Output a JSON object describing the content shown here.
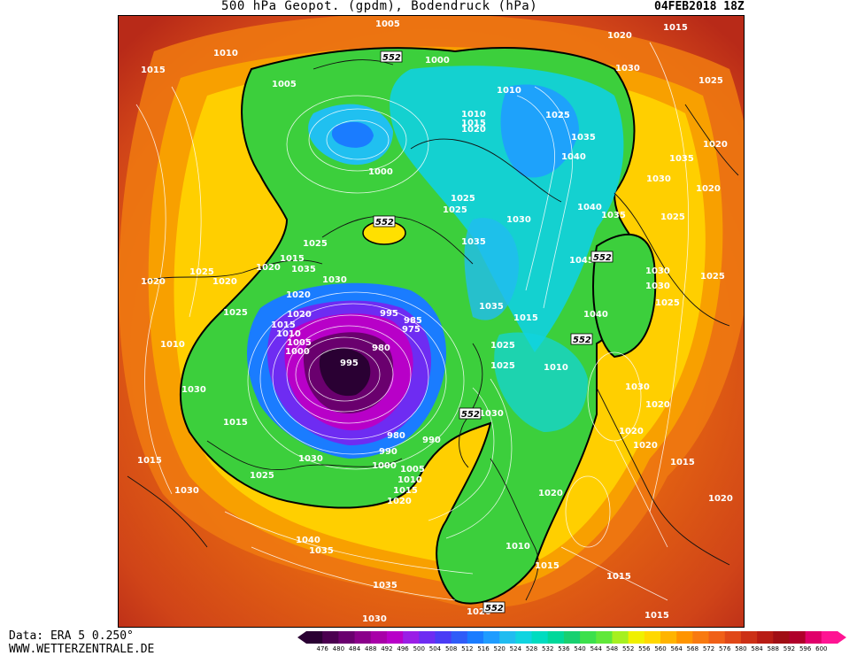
{
  "header": {
    "title": "500 hPa Geopot. (gpdm), Bodendruck (hPa)",
    "date": "04FEB2018 18Z"
  },
  "footer": {
    "data_source": "Data: ERA 5 0.250°",
    "website": "WWW.WETTERZENTRALE.DE"
  },
  "colorbar": {
    "values": [
      476,
      480,
      484,
      488,
      492,
      496,
      500,
      504,
      508,
      512,
      516,
      520,
      524,
      528,
      532,
      536,
      540,
      544,
      548,
      552,
      556,
      560,
      564,
      568,
      572,
      576,
      580,
      584,
      588,
      592,
      596,
      600
    ],
    "colors": [
      "#2a0033",
      "#4b0050",
      "#6a006e",
      "#8a008a",
      "#a800a8",
      "#b800c8",
      "#9a1ee6",
      "#6e2cf2",
      "#4a3cf5",
      "#2f5cf8",
      "#1a7cff",
      "#1f9cff",
      "#20bcf0",
      "#10d4e0",
      "#00dcc0",
      "#00d89a",
      "#18d070",
      "#3ce04c",
      "#60e83a",
      "#a6f020",
      "#f0f000",
      "#ffd800",
      "#ffb400",
      "#ff9400",
      "#f87a10",
      "#f06018",
      "#e04818",
      "#cc3016",
      "#b81c14",
      "#a00e14",
      "#b0002a",
      "#e0006a",
      "#ff1493"
    ],
    "arrow_left_color": "#2a0033",
    "arrow_right_color": "#ff1493"
  },
  "map": {
    "pressure_labels": [
      "1005",
      "1020",
      "1015",
      "1010",
      "1015",
      "1005",
      "552",
      "1000",
      "1030",
      "1025",
      "1010",
      "1010",
      "1015",
      "1020",
      "1025",
      "1035",
      "1020",
      "1040",
      "1000",
      "1035",
      "1030",
      "1020",
      "1040",
      "1025",
      "552",
      "1025",
      "1030",
      "1035",
      "1035",
      "1025",
      "1025",
      "1015",
      "1020",
      "1035",
      "1045",
      "552",
      "1030",
      "1020",
      "1025",
      "1020",
      "1025",
      "1030",
      "1035",
      "1040",
      "1015",
      "1030",
      "1020",
      "1025",
      "995",
      "985",
      "975",
      "1010",
      "1005",
      "1000",
      "980",
      "995",
      "1015",
      "1020",
      "1025",
      "1030",
      "1030",
      "1010",
      "1025",
      "1010",
      "1020",
      "552",
      "1030",
      "1025",
      "1015",
      "1020",
      "1015",
      "1030",
      "990",
      "990",
      "980",
      "1000",
      "1005",
      "1010",
      "1015",
      "1020",
      "1025",
      "1030",
      "1020",
      "1020",
      "1015",
      "1020",
      "1040",
      "1035",
      "1035",
      "1010",
      "1015",
      "552",
      "1030",
      "1015",
      "1015",
      "1020"
    ],
    "contour_552_label": "552"
  }
}
